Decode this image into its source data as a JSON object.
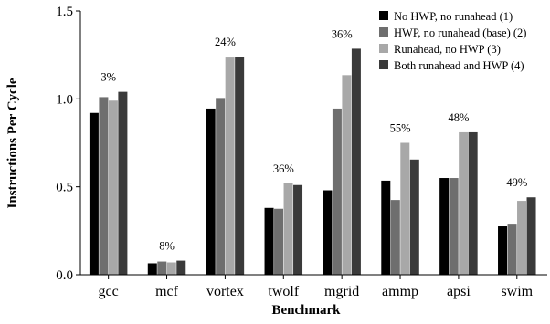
{
  "chart_data": {
    "type": "bar",
    "title": "",
    "xlabel": "Benchmark",
    "ylabel": "Instructions Per Cycle",
    "ylim": [
      0,
      1.5
    ],
    "yticks": [
      "0.0",
      "0.5",
      "1.0",
      "1.5"
    ],
    "grid": false,
    "legend_position": "top-right",
    "categories": [
      "gcc",
      "mcf",
      "vortex",
      "twolf",
      "mgrid",
      "ammp",
      "apsi",
      "swim"
    ],
    "series": [
      {
        "name": "No HWP, no runahead (1)",
        "color": "#000000",
        "values": [
          0.92,
          0.065,
          0.945,
          0.38,
          0.48,
          0.535,
          0.55,
          0.275
        ]
      },
      {
        "name": "HWP, no runahead (base) (2)",
        "color": "#6e6e6e",
        "values": [
          1.01,
          0.075,
          1.005,
          0.375,
          0.945,
          0.425,
          0.55,
          0.29
        ]
      },
      {
        "name": "Runahead, no HWP (3)",
        "color": "#a8a8a8",
        "values": [
          0.99,
          0.07,
          1.235,
          0.52,
          1.135,
          0.75,
          0.81,
          0.42
        ]
      },
      {
        "name": "Both runahead and HWP (4)",
        "color": "#3a3a3a",
        "values": [
          1.04,
          0.08,
          1.24,
          0.51,
          1.285,
          0.655,
          0.81,
          0.44
        ]
      }
    ],
    "annotations": [
      "3%",
      "8%",
      "24%",
      "36%",
      "36%",
      "55%",
      "48%",
      "49%"
    ]
  }
}
